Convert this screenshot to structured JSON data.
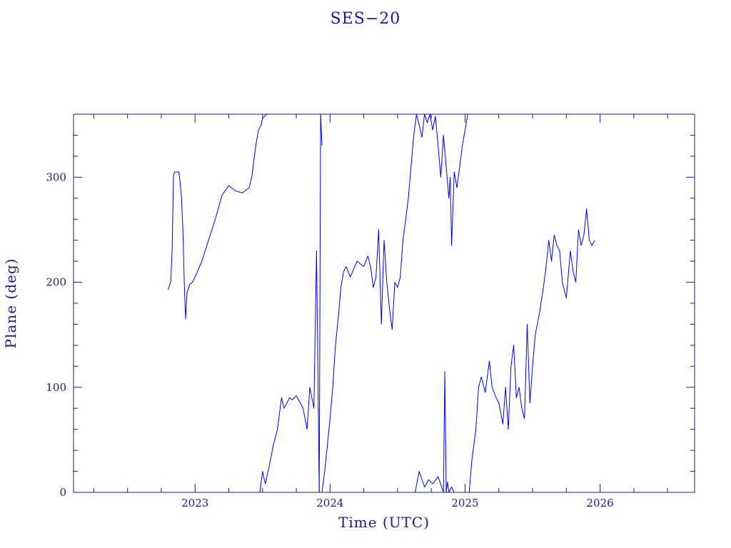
{
  "chart_data": {
    "type": "line",
    "title": "SES−20",
    "xlabel": "Time (UTC)",
    "ylabel": "Plane (deg)",
    "xlim": [
      2022.1,
      2026.7
    ],
    "ylim": [
      0,
      360
    ],
    "x_ticks": [
      2023,
      2024,
      2025,
      2026
    ],
    "x_tick_labels": [
      "2023",
      "2024",
      "2025",
      "2026"
    ],
    "y_ticks": [
      0,
      100,
      200,
      300
    ],
    "y_tick_labels": [
      "0",
      "100",
      "200",
      "300"
    ],
    "grid": false,
    "line_color": "#0000ee",
    "axis_color": "#1a1a8c",
    "series": [
      {
        "x": [
          2022.8,
          2022.82,
          2022.83,
          2022.84,
          2022.845,
          2022.85,
          2022.86,
          2022.88,
          2022.89,
          2022.9,
          2022.91,
          2022.92,
          2022.93,
          2022.94,
          2022.96,
          2022.98,
          2023.0,
          2023.05,
          2023.1,
          2023.15,
          2023.2,
          2023.25,
          2023.3,
          2023.35,
          2023.4,
          2023.42,
          2023.44,
          2023.45,
          2023.47,
          2023.49,
          2023.5,
          2023.53
        ],
        "y": [
          193,
          200,
          230,
          300,
          304,
          305,
          305,
          305,
          295,
          280,
          250,
          200,
          165,
          190,
          198,
          200,
          205,
          220,
          240,
          260,
          283,
          292,
          287,
          285,
          290,
          300,
          320,
          330,
          345,
          350,
          356,
          360
        ]
      },
      {
        "x": [
          2023.48,
          2023.5,
          2023.52,
          2023.55,
          2023.58,
          2023.61,
          2023.64,
          2023.66,
          2023.68,
          2023.7,
          2023.72,
          2023.75,
          2023.78,
          2023.8,
          2023.83,
          2023.85,
          2023.88,
          2023.9,
          2023.92
        ],
        "y": [
          0,
          20,
          8,
          25,
          45,
          60,
          90,
          80,
          85,
          90,
          88,
          92,
          85,
          80,
          60,
          100,
          80,
          230,
          0
        ]
      },
      {
        "x": [
          2023.92,
          2023.93,
          2023.94
        ],
        "y": [
          0,
          360,
          330
        ]
      },
      {
        "x": [
          2023.94,
          2023.96,
          2023.98,
          2024.0,
          2024.02,
          2024.04,
          2024.06,
          2024.08,
          2024.1,
          2024.12,
          2024.15,
          2024.2,
          2024.25,
          2024.28,
          2024.3,
          2024.32,
          2024.34,
          2024.36,
          2024.38,
          2024.4,
          2024.42,
          2024.44,
          2024.46,
          2024.48,
          2024.5,
          2024.52,
          2024.54,
          2024.56,
          2024.58,
          2024.6,
          2024.62,
          2024.64
        ],
        "y": [
          0,
          20,
          45,
          70,
          100,
          140,
          165,
          195,
          210,
          215,
          205,
          220,
          215,
          225,
          215,
          195,
          205,
          250,
          160,
          240,
          200,
          175,
          155,
          200,
          195,
          205,
          240,
          260,
          280,
          310,
          340,
          360
        ]
      },
      {
        "x": [
          2024.64,
          2024.66,
          2024.68,
          2024.7,
          2024.72,
          2024.74,
          2024.76,
          2024.78,
          2024.8,
          2024.82,
          2024.84,
          2024.86,
          2024.88,
          2024.89,
          2024.9,
          2024.92,
          2024.94,
          2024.96,
          2024.98,
          2025.0,
          2025.02
        ],
        "y": [
          360,
          350,
          338,
          360,
          352,
          360,
          345,
          358,
          330,
          300,
          340,
          310,
          280,
          300,
          235,
          305,
          290,
          310,
          330,
          345,
          360
        ]
      },
      {
        "x": [
          2024.63,
          2024.66,
          2024.7,
          2024.73,
          2024.76,
          2024.8,
          2024.84,
          2024.85,
          2024.86,
          2024.87,
          2024.88,
          2024.9,
          2024.92
        ],
        "y": [
          0,
          20,
          5,
          12,
          8,
          15,
          0,
          115,
          0,
          10,
          0,
          5,
          0
        ]
      },
      {
        "x": [
          2025.03,
          2025.05,
          2025.08,
          2025.1,
          2025.12,
          2025.15,
          2025.18,
          2025.2,
          2025.23,
          2025.25,
          2025.28,
          2025.3,
          2025.32,
          2025.34,
          2025.36,
          2025.38,
          2025.4,
          2025.42,
          2025.44,
          2025.46,
          2025.48,
          2025.5,
          2025.52,
          2025.55,
          2025.58,
          2025.6,
          2025.62,
          2025.64,
          2025.66,
          2025.68,
          2025.7,
          2025.72,
          2025.75,
          2025.78,
          2025.8,
          2025.82,
          2025.84,
          2025.86,
          2025.88,
          2025.9,
          2025.92,
          2025.94,
          2025.96
        ],
        "y": [
          0,
          30,
          60,
          100,
          110,
          95,
          125,
          100,
          90,
          85,
          65,
          100,
          60,
          120,
          140,
          90,
          100,
          80,
          70,
          160,
          85,
          120,
          150,
          170,
          195,
          215,
          240,
          220,
          245,
          235,
          230,
          200,
          185,
          230,
          210,
          200,
          250,
          235,
          245,
          270,
          240,
          235,
          240
        ]
      }
    ]
  }
}
